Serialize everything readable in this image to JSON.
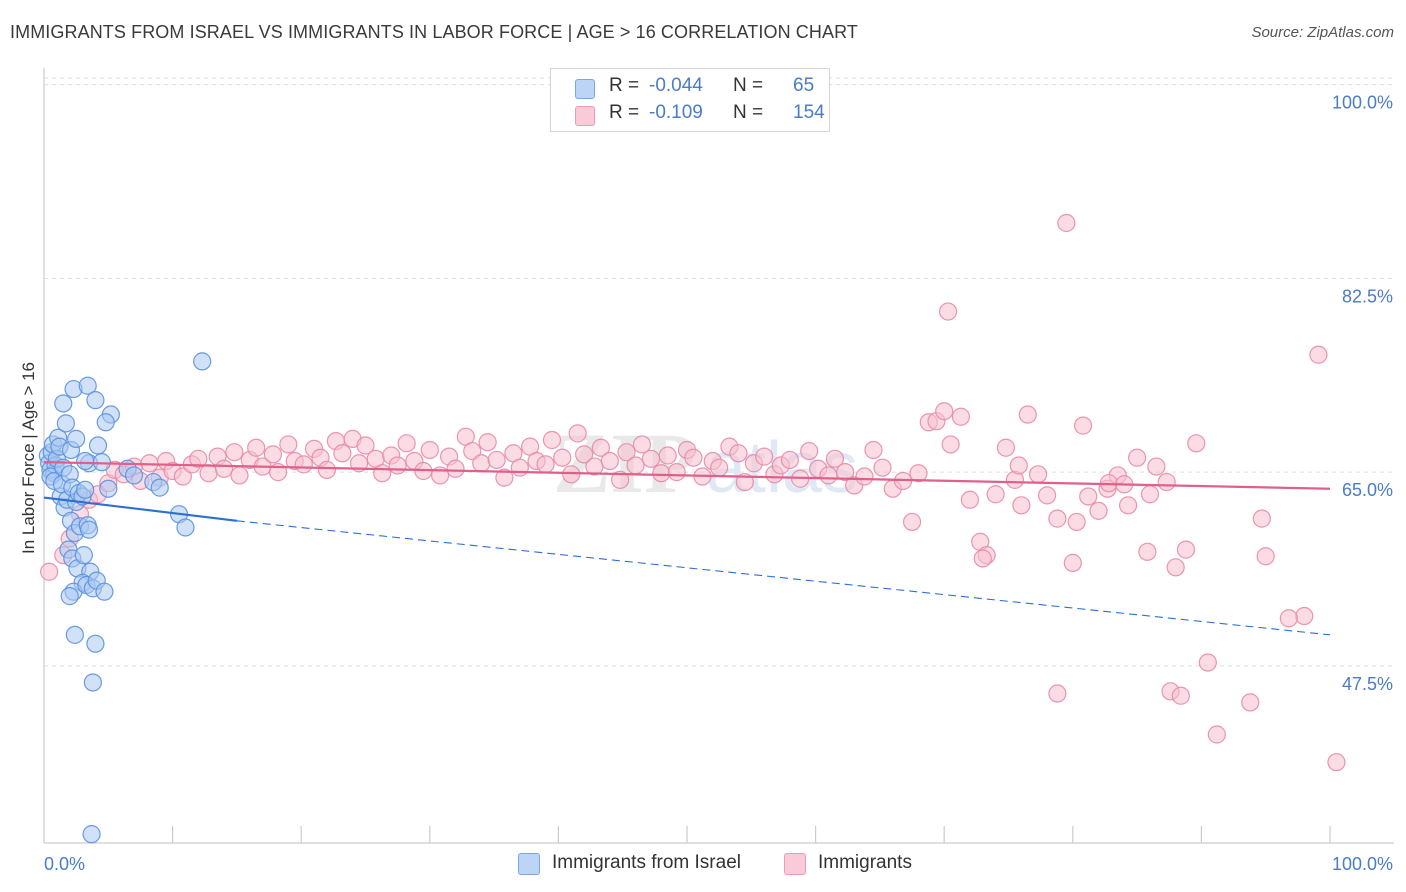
{
  "header": {
    "title": "IMMIGRANTS FROM ISRAEL VS IMMIGRANTS IN LABOR FORCE | AGE > 16 CORRELATION CHART",
    "source": "Source: ZipAtlas.com"
  },
  "legend": {
    "rows": [
      {
        "r_label": "R =",
        "r_value": "-0.044",
        "n_label": "N =",
        "n_value": "65"
      },
      {
        "r_label": "R =",
        "r_value": "-0.109",
        "n_label": "N =",
        "n_value": "154"
      }
    ]
  },
  "bottom_legend": {
    "items": [
      "Immigrants from Israel",
      "Immigrants"
    ]
  },
  "watermark": "ZIPatlas",
  "colors": {
    "blue_fill": "#a9c8f2",
    "blue_stroke": "#5b91dd",
    "blue_line": "#2e6fd4",
    "pink_fill": "#f7bfd0",
    "pink_stroke": "#e88aa8",
    "pink_line": "#e0608a",
    "tick_label": "#4a7cc9",
    "grid": "#dddddd"
  },
  "chart_data": {
    "type": "scatter",
    "title": "IMMIGRANTS FROM ISRAEL VS IMMIGRANTS IN LABOR FORCE | AGE > 16 CORRELATION CHART",
    "xlabel": "",
    "ylabel": "In Labor Force | Age > 16",
    "xlim": [
      0,
      100
    ],
    "ylim": [
      31.5,
      101.5
    ],
    "x_tick_labels": [
      {
        "value": 0,
        "label": "0.0%"
      },
      {
        "value": 100,
        "label": "100.0%"
      }
    ],
    "y_ticks": [
      {
        "value": 47.5,
        "label": "47.5%"
      },
      {
        "value": 65.0,
        "label": "65.0%"
      },
      {
        "value": 82.5,
        "label": "82.5%"
      },
      {
        "value": 100.0,
        "label": "100.0%"
      }
    ],
    "grid": true,
    "legend_position": "top-center",
    "series": [
      {
        "name": "Immigrants from Israel",
        "r": -0.044,
        "n": 65,
        "trend": {
          "x0": 0,
          "y0": 62.7,
          "x1": 15,
          "y1": 60.6,
          "dashed_to_x": 100,
          "dashed_to_y": 50.3
        },
        "points": [
          [
            0.3,
            66.5
          ],
          [
            0.4,
            65.8
          ],
          [
            0.5,
            65.2
          ],
          [
            0.6,
            66.8
          ],
          [
            0.7,
            67.5
          ],
          [
            0.8,
            64.9
          ],
          [
            0.9,
            65.6
          ],
          [
            1.0,
            66.2
          ],
          [
            1.1,
            68.1
          ],
          [
            1.2,
            67.3
          ],
          [
            0.5,
            64.6
          ],
          [
            0.8,
            64.2
          ],
          [
            1.5,
            65.4
          ],
          [
            1.3,
            62.8
          ],
          [
            1.4,
            63.9
          ],
          [
            1.6,
            61.8
          ],
          [
            1.8,
            62.5
          ],
          [
            2.0,
            64.8
          ],
          [
            2.2,
            63.6
          ],
          [
            2.5,
            62.3
          ],
          [
            2.7,
            63.1
          ],
          [
            3.0,
            62.8
          ],
          [
            3.2,
            63.4
          ],
          [
            2.1,
            60.6
          ],
          [
            2.4,
            59.5
          ],
          [
            2.8,
            60.1
          ],
          [
            3.4,
            60.2
          ],
          [
            3.5,
            59.8
          ],
          [
            1.9,
            58.0
          ],
          [
            2.2,
            57.2
          ],
          [
            2.6,
            56.3
          ],
          [
            3.1,
            57.5
          ],
          [
            3.6,
            56.0
          ],
          [
            3.0,
            55.0
          ],
          [
            2.3,
            54.2
          ],
          [
            2.0,
            53.8
          ],
          [
            3.3,
            54.8
          ],
          [
            3.8,
            54.5
          ],
          [
            4.1,
            55.2
          ],
          [
            4.7,
            54.2
          ],
          [
            2.4,
            50.3
          ],
          [
            4.0,
            49.5
          ],
          [
            3.8,
            46.0
          ],
          [
            1.5,
            71.2
          ],
          [
            1.7,
            69.4
          ],
          [
            2.3,
            72.5
          ],
          [
            3.4,
            72.8
          ],
          [
            4.0,
            71.5
          ],
          [
            5.2,
            70.2
          ],
          [
            4.8,
            69.5
          ],
          [
            2.1,
            67.0
          ],
          [
            3.5,
            65.8
          ],
          [
            4.2,
            67.4
          ],
          [
            5.0,
            63.5
          ],
          [
            6.5,
            65.3
          ],
          [
            7.0,
            64.7
          ],
          [
            8.5,
            64.1
          ],
          [
            9.0,
            63.6
          ],
          [
            10.5,
            61.2
          ],
          [
            11.0,
            60.0
          ],
          [
            12.3,
            75.0
          ],
          [
            2.5,
            68.0
          ],
          [
            3.2,
            66.0
          ],
          [
            4.5,
            65.9
          ],
          [
            3.7,
            32.3
          ]
        ]
      },
      {
        "name": "Immigrants",
        "r": -0.109,
        "n": 154,
        "trend": {
          "x0": 0,
          "y0": 65.9,
          "x1": 100,
          "y1": 63.5
        },
        "points": [
          [
            0.4,
            56.0
          ],
          [
            1.5,
            57.5
          ],
          [
            2.0,
            59.0
          ],
          [
            2.8,
            61.2
          ],
          [
            3.5,
            62.5
          ],
          [
            4.2,
            63.0
          ],
          [
            5.0,
            64.0
          ],
          [
            5.5,
            65.2
          ],
          [
            6.2,
            64.8
          ],
          [
            7.0,
            65.5
          ],
          [
            7.5,
            64.2
          ],
          [
            8.2,
            65.8
          ],
          [
            9.0,
            64.5
          ],
          [
            9.5,
            66.0
          ],
          [
            10.0,
            65.1
          ],
          [
            10.8,
            64.6
          ],
          [
            11.5,
            65.7
          ],
          [
            12.0,
            66.2
          ],
          [
            12.8,
            64.9
          ],
          [
            13.5,
            66.4
          ],
          [
            14.0,
            65.3
          ],
          [
            14.8,
            66.8
          ],
          [
            15.2,
            64.7
          ],
          [
            16.0,
            66.1
          ],
          [
            16.5,
            67.2
          ],
          [
            17.0,
            65.5
          ],
          [
            17.8,
            66.6
          ],
          [
            18.2,
            65.0
          ],
          [
            19.0,
            67.5
          ],
          [
            19.5,
            66.0
          ],
          [
            20.2,
            65.7
          ],
          [
            21.0,
            67.1
          ],
          [
            21.5,
            66.3
          ],
          [
            22.0,
            65.2
          ],
          [
            22.7,
            67.8
          ],
          [
            23.2,
            66.7
          ],
          [
            24.0,
            68.0
          ],
          [
            24.5,
            65.8
          ],
          [
            25.0,
            67.4
          ],
          [
            25.8,
            66.2
          ],
          [
            26.3,
            64.9
          ],
          [
            27.0,
            66.5
          ],
          [
            27.5,
            65.6
          ],
          [
            28.2,
            67.6
          ],
          [
            28.8,
            66.0
          ],
          [
            29.5,
            65.1
          ],
          [
            30.0,
            67.0
          ],
          [
            30.8,
            64.7
          ],
          [
            31.5,
            66.4
          ],
          [
            32.0,
            65.3
          ],
          [
            32.8,
            68.2
          ],
          [
            33.3,
            66.9
          ],
          [
            34.0,
            65.8
          ],
          [
            34.5,
            67.7
          ],
          [
            35.2,
            66.1
          ],
          [
            35.8,
            64.5
          ],
          [
            36.5,
            66.7
          ],
          [
            37.0,
            65.4
          ],
          [
            37.8,
            67.3
          ],
          [
            38.3,
            66.0
          ],
          [
            39.0,
            65.7
          ],
          [
            39.5,
            67.9
          ],
          [
            40.3,
            66.3
          ],
          [
            41.0,
            64.8
          ],
          [
            41.5,
            68.5
          ],
          [
            42.0,
            66.6
          ],
          [
            42.8,
            65.5
          ],
          [
            43.3,
            67.2
          ],
          [
            44.0,
            66.0
          ],
          [
            44.8,
            64.3
          ],
          [
            45.3,
            66.8
          ],
          [
            46.0,
            65.6
          ],
          [
            46.5,
            67.5
          ],
          [
            47.2,
            66.2
          ],
          [
            48.0,
            64.9
          ],
          [
            48.5,
            66.5
          ],
          [
            49.2,
            65.0
          ],
          [
            50.0,
            67.0
          ],
          [
            50.5,
            66.3
          ],
          [
            51.2,
            64.6
          ],
          [
            52.0,
            66.0
          ],
          [
            52.5,
            65.4
          ],
          [
            53.3,
            67.3
          ],
          [
            54.0,
            66.7
          ],
          [
            54.5,
            64.1
          ],
          [
            55.2,
            65.8
          ],
          [
            56.0,
            66.4
          ],
          [
            56.8,
            64.8
          ],
          [
            57.3,
            65.6
          ],
          [
            58.0,
            66.1
          ],
          [
            58.8,
            64.4
          ],
          [
            59.5,
            66.9
          ],
          [
            60.2,
            65.3
          ],
          [
            61.0,
            64.7
          ],
          [
            61.5,
            66.2
          ],
          [
            62.3,
            65.0
          ],
          [
            63.0,
            63.8
          ],
          [
            63.8,
            64.6
          ],
          [
            64.5,
            67.0
          ],
          [
            65.2,
            65.4
          ],
          [
            66.0,
            63.5
          ],
          [
            66.8,
            64.2
          ],
          [
            67.5,
            60.5
          ],
          [
            68.0,
            64.9
          ],
          [
            68.8,
            69.5
          ],
          [
            69.4,
            69.6
          ],
          [
            70.0,
            70.5
          ],
          [
            70.5,
            67.5
          ],
          [
            71.3,
            70.0
          ],
          [
            72.0,
            62.5
          ],
          [
            72.8,
            58.7
          ],
          [
            73.3,
            57.5
          ],
          [
            74.0,
            63.0
          ],
          [
            74.8,
            67.2
          ],
          [
            75.5,
            64.3
          ],
          [
            76.0,
            62.0
          ],
          [
            76.5,
            70.2
          ],
          [
            77.3,
            64.8
          ],
          [
            78.0,
            62.9
          ],
          [
            78.8,
            60.8
          ],
          [
            79.5,
            87.5
          ],
          [
            80.3,
            60.5
          ],
          [
            81.2,
            62.8
          ],
          [
            82.0,
            61.5
          ],
          [
            82.7,
            63.5
          ],
          [
            83.5,
            64.7
          ],
          [
            84.3,
            62.0
          ],
          [
            85.0,
            66.3
          ],
          [
            85.8,
            57.8
          ],
          [
            86.5,
            65.5
          ],
          [
            87.3,
            64.1
          ],
          [
            88.0,
            56.4
          ],
          [
            88.8,
            58.0
          ],
          [
            89.6,
            67.6
          ],
          [
            70.3,
            79.5
          ],
          [
            73.0,
            57.2
          ],
          [
            75.8,
            65.6
          ],
          [
            78.8,
            45.0
          ],
          [
            80.0,
            56.8
          ],
          [
            80.8,
            69.2
          ],
          [
            82.8,
            64.0
          ],
          [
            84.0,
            63.9
          ],
          [
            86.0,
            63.0
          ],
          [
            87.6,
            45.2
          ],
          [
            88.4,
            44.8
          ],
          [
            95.0,
            57.4
          ],
          [
            98.0,
            52.0
          ],
          [
            99.1,
            75.6
          ],
          [
            90.5,
            47.8
          ],
          [
            91.2,
            41.3
          ],
          [
            100.5,
            38.8
          ],
          [
            96.8,
            51.8
          ],
          [
            93.8,
            44.2
          ],
          [
            94.7,
            60.8
          ]
        ]
      }
    ]
  }
}
